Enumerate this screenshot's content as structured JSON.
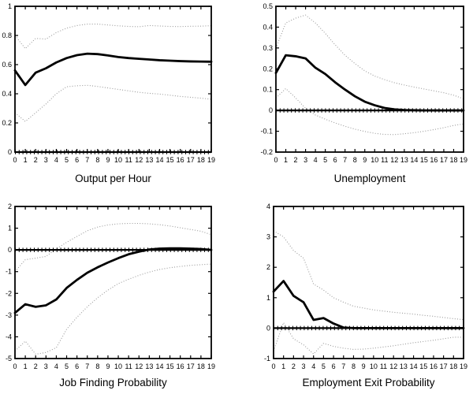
{
  "figure": {
    "description": "2x2 grid of impulse response plots with dotted confidence bands and a marked zero line",
    "background": "#ffffff",
    "colors": {
      "response_line": "#000000",
      "confidence_band": "#9a9a9a",
      "zero_line": "#000000",
      "axis": "#000000"
    }
  },
  "chart_data": [
    {
      "type": "line",
      "title": "Output per Hour",
      "x": [
        0,
        1,
        2,
        3,
        4,
        5,
        6,
        7,
        8,
        9,
        10,
        11,
        12,
        13,
        14,
        15,
        16,
        17,
        18,
        19
      ],
      "series": [
        {
          "name": "response",
          "style": "solid",
          "color": "#000000",
          "values": [
            0.56,
            0.46,
            0.545,
            0.575,
            0.615,
            0.645,
            0.665,
            0.675,
            0.672,
            0.663,
            0.652,
            0.645,
            0.64,
            0.635,
            0.63,
            0.627,
            0.624,
            0.622,
            0.621,
            0.62
          ]
        },
        {
          "name": "upper-confidence-band",
          "style": "dotted",
          "color": "#9a9a9a",
          "values": [
            0.8,
            0.71,
            0.78,
            0.775,
            0.82,
            0.85,
            0.868,
            0.878,
            0.878,
            0.872,
            0.866,
            0.862,
            0.86,
            0.868,
            0.865,
            0.862,
            0.861,
            0.863,
            0.864,
            0.867
          ]
        },
        {
          "name": "lower-confidence-band",
          "style": "dotted",
          "color": "#9a9a9a",
          "values": [
            0.27,
            0.21,
            0.27,
            0.33,
            0.4,
            0.448,
            0.455,
            0.458,
            0.45,
            0.44,
            0.43,
            0.42,
            0.41,
            0.403,
            0.398,
            0.39,
            0.382,
            0.376,
            0.37,
            0.362
          ]
        }
      ],
      "zero_line": true,
      "grid": false,
      "legend": null,
      "xlim": [
        0,
        19
      ],
      "ylim": [
        0,
        1
      ],
      "xticks": [
        0,
        1,
        2,
        3,
        4,
        5,
        6,
        7,
        8,
        9,
        10,
        11,
        12,
        13,
        14,
        15,
        16,
        17,
        18,
        19
      ],
      "xtick_labels": [
        "0",
        "1",
        "2",
        "3",
        "4",
        "5",
        "6",
        "7",
        "8",
        "9",
        "10",
        "11",
        "12",
        "13",
        "14",
        "15",
        "16",
        "17",
        "18",
        "19"
      ],
      "yticks": [
        0,
        0.2,
        0.4,
        0.6,
        0.8,
        1
      ],
      "ytick_labels": [
        "0",
        "0.2",
        "0.4",
        "0.6",
        "0.8",
        "1"
      ]
    },
    {
      "type": "line",
      "title": "Unemployment",
      "x": [
        0,
        1,
        2,
        3,
        4,
        5,
        6,
        7,
        8,
        9,
        10,
        11,
        12,
        13,
        14,
        15,
        16,
        17,
        18,
        19
      ],
      "series": [
        {
          "name": "response",
          "style": "solid",
          "color": "#000000",
          "values": [
            0.18,
            0.265,
            0.26,
            0.25,
            0.205,
            0.175,
            0.135,
            0.1,
            0.068,
            0.042,
            0.025,
            0.012,
            0.005,
            0.002,
            0.001,
            0,
            0,
            0,
            0,
            0
          ]
        },
        {
          "name": "upper-confidence-band",
          "style": "dotted",
          "color": "#9a9a9a",
          "values": [
            0.3,
            0.42,
            0.443,
            0.458,
            0.42,
            0.37,
            0.315,
            0.265,
            0.225,
            0.19,
            0.165,
            0.148,
            0.133,
            0.122,
            0.112,
            0.103,
            0.094,
            0.085,
            0.073,
            0.056
          ]
        },
        {
          "name": "lower-confidence-band",
          "style": "dotted",
          "color": "#9a9a9a",
          "values": [
            0.06,
            0.105,
            0.06,
            0.01,
            -0.022,
            -0.042,
            -0.06,
            -0.076,
            -0.09,
            -0.101,
            -0.11,
            -0.115,
            -0.116,
            -0.112,
            -0.107,
            -0.1,
            -0.092,
            -0.083,
            -0.072,
            -0.065
          ]
        }
      ],
      "zero_line": true,
      "grid": false,
      "legend": null,
      "xlim": [
        0,
        19
      ],
      "ylim": [
        -0.2,
        0.5
      ],
      "xticks": [
        0,
        1,
        2,
        3,
        4,
        5,
        6,
        7,
        8,
        9,
        10,
        11,
        12,
        13,
        14,
        15,
        16,
        17,
        18,
        19
      ],
      "xtick_labels": [
        "0",
        "1",
        "2",
        "3",
        "4",
        "5",
        "6",
        "7",
        "8",
        "9",
        "10",
        "11",
        "12",
        "13",
        "14",
        "15",
        "16",
        "17",
        "18",
        "19"
      ],
      "yticks": [
        -0.2,
        -0.1,
        0,
        0.1,
        0.2,
        0.3,
        0.4,
        0.5
      ],
      "ytick_labels": [
        "-0.2",
        "-0.1",
        "0",
        "0.1",
        "0.2",
        "0.3",
        "0.4",
        "0.5"
      ]
    },
    {
      "type": "line",
      "title": "Job Finding Probability",
      "x": [
        0,
        1,
        2,
        3,
        4,
        5,
        6,
        7,
        8,
        9,
        10,
        11,
        12,
        13,
        14,
        15,
        16,
        17,
        18,
        19
      ],
      "series": [
        {
          "name": "response",
          "style": "solid",
          "color": "#000000",
          "values": [
            -2.9,
            -2.5,
            -2.62,
            -2.55,
            -2.28,
            -1.75,
            -1.38,
            -1.05,
            -0.8,
            -0.58,
            -0.38,
            -0.2,
            -0.08,
            0.02,
            0.06,
            0.07,
            0.07,
            0.06,
            0.04,
            0.0
          ]
        },
        {
          "name": "upper-confidence-band",
          "style": "dotted",
          "color": "#9a9a9a",
          "values": [
            -1.0,
            -0.45,
            -0.38,
            -0.3,
            0.05,
            0.35,
            0.62,
            0.88,
            1.05,
            1.15,
            1.2,
            1.22,
            1.22,
            1.2,
            1.16,
            1.1,
            1.02,
            0.94,
            0.86,
            0.7
          ]
        },
        {
          "name": "lower-confidence-band",
          "style": "dotted",
          "color": "#9a9a9a",
          "values": [
            -4.65,
            -4.2,
            -4.8,
            -4.72,
            -4.5,
            -3.65,
            -3.1,
            -2.62,
            -2.2,
            -1.85,
            -1.55,
            -1.35,
            -1.17,
            -1.02,
            -0.9,
            -0.82,
            -0.76,
            -0.71,
            -0.68,
            -0.65
          ]
        }
      ],
      "zero_line": true,
      "grid": false,
      "legend": null,
      "xlim": [
        0,
        19
      ],
      "ylim": [
        -5,
        2
      ],
      "xticks": [
        0,
        1,
        2,
        3,
        4,
        5,
        6,
        7,
        8,
        9,
        10,
        11,
        12,
        13,
        14,
        15,
        16,
        17,
        18,
        19
      ],
      "xtick_labels": [
        "0",
        "1",
        "2",
        "3",
        "4",
        "5",
        "6",
        "7",
        "8",
        "9",
        "10",
        "11",
        "12",
        "13",
        "14",
        "15",
        "16",
        "17",
        "18",
        "19"
      ],
      "yticks": [
        -5,
        -4,
        -3,
        -2,
        -1,
        0,
        1,
        2
      ],
      "ytick_labels": [
        "-5",
        "-4",
        "-3",
        "-2",
        "-1",
        "0",
        "1",
        "2"
      ]
    },
    {
      "type": "line",
      "title": "Employment Exit Probability",
      "x": [
        0,
        1,
        2,
        3,
        4,
        5,
        6,
        7,
        8,
        9,
        10,
        11,
        12,
        13,
        14,
        15,
        16,
        17,
        18,
        19
      ],
      "series": [
        {
          "name": "response",
          "style": "solid",
          "color": "#000000",
          "values": [
            1.2,
            1.55,
            1.06,
            0.85,
            0.27,
            0.33,
            0.15,
            0.02,
            0,
            0,
            0,
            0,
            0,
            0,
            0,
            0,
            0,
            0,
            0,
            0
          ]
        },
        {
          "name": "upper-confidence-band",
          "style": "dotted",
          "color": "#9a9a9a",
          "values": [
            3.2,
            3.0,
            2.55,
            2.3,
            1.45,
            1.25,
            1.0,
            0.85,
            0.72,
            0.66,
            0.6,
            0.56,
            0.52,
            0.49,
            0.46,
            0.42,
            0.39,
            0.35,
            0.31,
            0.28
          ]
        },
        {
          "name": "lower-confidence-band",
          "style": "dotted",
          "color": "#9a9a9a",
          "values": [
            -0.75,
            0.18,
            -0.35,
            -0.55,
            -0.85,
            -0.5,
            -0.6,
            -0.66,
            -0.7,
            -0.69,
            -0.66,
            -0.62,
            -0.58,
            -0.53,
            -0.48,
            -0.44,
            -0.4,
            -0.35,
            -0.3,
            -0.3
          ]
        }
      ],
      "zero_line": true,
      "grid": false,
      "legend": null,
      "xlim": [
        0,
        19
      ],
      "ylim": [
        -1,
        4
      ],
      "xticks": [
        0,
        1,
        2,
        3,
        4,
        5,
        6,
        7,
        8,
        9,
        10,
        11,
        12,
        13,
        14,
        15,
        16,
        17,
        18,
        19
      ],
      "xtick_labels": [
        "0",
        "1",
        "2",
        "3",
        "4",
        "5",
        "6",
        "7",
        "8",
        "9",
        "10",
        "11",
        "12",
        "13",
        "14",
        "15",
        "16",
        "17",
        "18",
        "19"
      ],
      "yticks": [
        -1,
        0,
        1,
        2,
        3,
        4
      ],
      "ytick_labels": [
        "-1",
        "0",
        "1",
        "2",
        "3",
        "4"
      ]
    }
  ]
}
